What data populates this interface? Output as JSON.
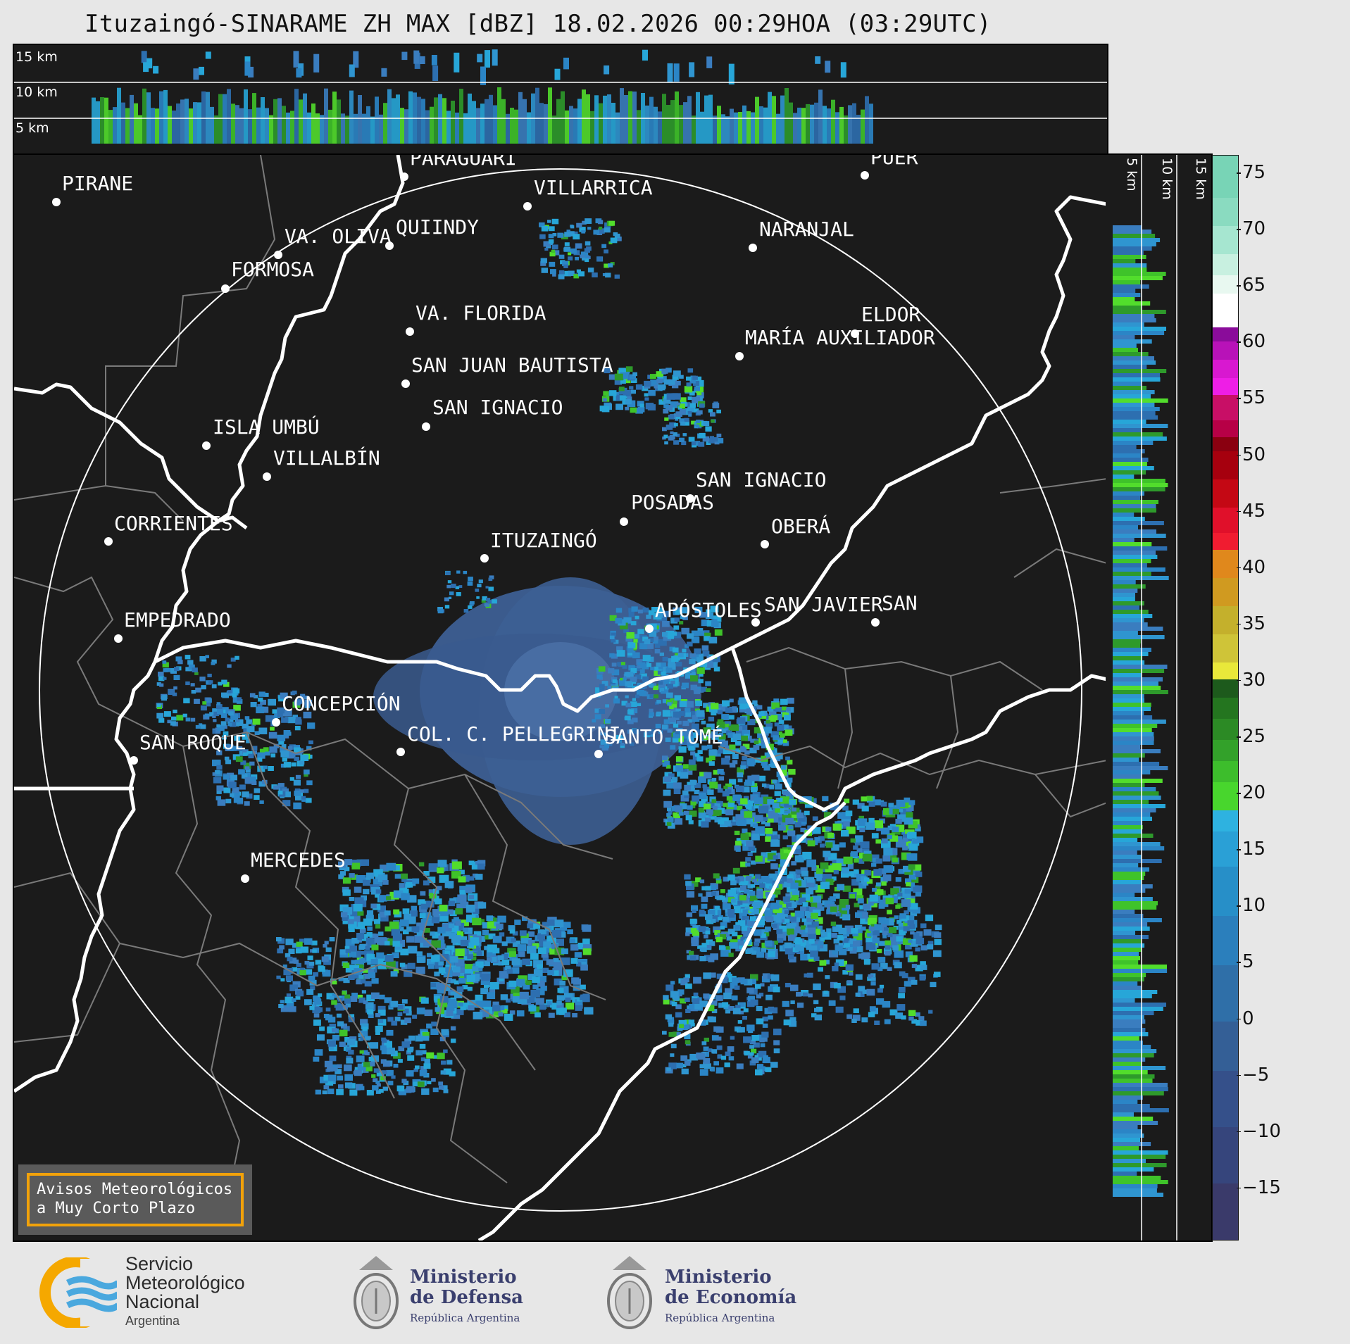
{
  "title": "Ituzaingó-SINARAME ZH MAX [dBZ] 18.02.2026 00:29HOA (03:29UTC)",
  "top_panel": {
    "height_labels": [
      "15 km",
      "10 km",
      "5 km"
    ]
  },
  "side_panel": {
    "height_labels": [
      "5 km",
      "10 km",
      "15 km"
    ]
  },
  "colorbar": {
    "ticks": [
      "75",
      "70",
      "65",
      "60",
      "55",
      "50",
      "45",
      "40",
      "35",
      "30",
      "25",
      "20",
      "15",
      "10",
      "5",
      "0",
      "−5",
      "−10",
      "−15"
    ],
    "colors": {
      "neg": "#2f3a6a",
      "low_blue": "#2f85c8",
      "light_blue": "#27a6d8",
      "green": "#2d9a2b",
      "bright_green": "#4fdd2a",
      "yellow": "#e9e83a",
      "olive": "#b9b330",
      "orange": "#e28a18",
      "red": "#d8102c",
      "dark_red": "#8a0010",
      "magenta": "#e21ad6",
      "purple": "#8a0c9a",
      "white": "#ffffff",
      "mint": "#80d8b8"
    }
  },
  "cities": [
    {
      "name": "PIRANE"
    },
    {
      "name": "PARAGUARÍ"
    },
    {
      "name": "VILLARRICA"
    },
    {
      "name": "QUIINDY"
    },
    {
      "name": "VA. OLIVA"
    },
    {
      "name": "FORMOSA"
    },
    {
      "name": "NARANJAL"
    },
    {
      "name": "PUER"
    },
    {
      "name": "VA. FLORIDA"
    },
    {
      "name": "ELDOR"
    },
    {
      "name": "MARÍA AUXILIADOR"
    },
    {
      "name": "SAN JUAN BAUTISTA"
    },
    {
      "name": "SAN IGNACIO"
    },
    {
      "name": "ISLA UMBÚ"
    },
    {
      "name": "VILLALBÍN"
    },
    {
      "name": "SAN IGNACIO"
    },
    {
      "name": "POSADAS"
    },
    {
      "name": "CORRIENTES"
    },
    {
      "name": "ITUZAINGÓ"
    },
    {
      "name": "OBERÁ"
    },
    {
      "name": "APÓSTOLES"
    },
    {
      "name": "SAN JAVIER"
    },
    {
      "name": "SAN"
    },
    {
      "name": "EMPEDRADO"
    },
    {
      "name": "CONCEPCIÓN"
    },
    {
      "name": "COL. C. PELLEGRINI"
    },
    {
      "name": "SANTO TOMÉ"
    },
    {
      "name": "SAN ROQUE"
    },
    {
      "name": "MERCEDES"
    }
  ],
  "alert": {
    "line1": "Avisos Meteorológicos",
    "line2": "a Muy Corto Plazo"
  },
  "logos": {
    "smn_line1": "Servicio",
    "smn_line2": "Meteorológico",
    "smn_line3": "Nacional",
    "smn_line4": "Argentina",
    "defensa_line1": "Ministerio",
    "defensa_line2": "de Defensa",
    "defensa_line3": "República Argentina",
    "economia_line1": "Ministerio",
    "economia_line2": "de Economía",
    "economia_line3": "República Argentina"
  }
}
